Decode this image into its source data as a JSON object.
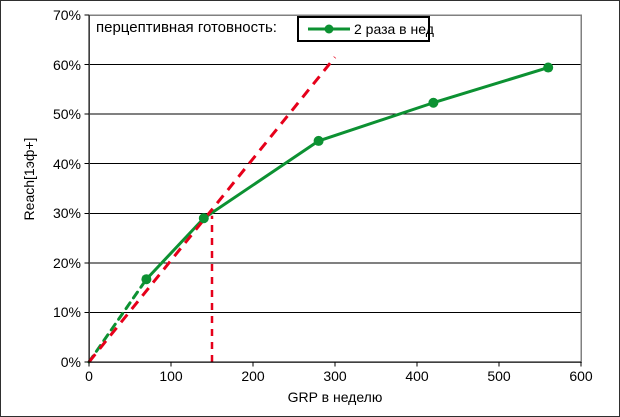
{
  "window": {
    "background": "#ffffff",
    "outer_border_color": "#2f2f2f"
  },
  "chart_data": {
    "type": "line",
    "title": "",
    "xlabel": "GRP в неделю",
    "ylabel": "Reach[1эф+]",
    "legend_header": "перцептивная готовность:",
    "legend_position": "top-inside",
    "grid": "horizontal",
    "xlim": [
      0,
      600
    ],
    "ylim": [
      0,
      70
    ],
    "x_ticks": [
      0,
      100,
      200,
      300,
      400,
      500,
      600
    ],
    "y_tick_labels": [
      "0%",
      "10%",
      "20%",
      "30%",
      "40%",
      "50%",
      "60%",
      "70%"
    ],
    "y_tick_values": [
      0,
      10,
      20,
      30,
      40,
      50,
      60,
      70
    ],
    "series": [
      {
        "name": "2 раза в нед",
        "kind": "reach-curve",
        "color": "#0c9132",
        "marker": "circle",
        "marker_radius": 5,
        "line_width": 3,
        "first_segment": "dashed",
        "dash": [
          7,
          6
        ],
        "points": [
          [
            0,
            0
          ],
          [
            70,
            16.7
          ],
          [
            140,
            29
          ],
          [
            280,
            44.6
          ],
          [
            420,
            52.3
          ],
          [
            560,
            59.4
          ]
        ]
      },
      {
        "name": "linear-reference",
        "kind": "straight-dashed",
        "color": "#e6001a",
        "line_width": 3,
        "dash": [
          10,
          7
        ],
        "points": [
          [
            0,
            0
          ],
          [
            300,
            61.5
          ]
        ]
      },
      {
        "name": "threshold-marker",
        "kind": "vertical-dashed",
        "color": "#e6001a",
        "line_width": 2.5,
        "dash": [
          7,
          6
        ],
        "points": [
          [
            150,
            0
          ],
          [
            150,
            29.5
          ]
        ]
      }
    ],
    "colors": {
      "gridline": "#000000",
      "plot_border": "#808080",
      "axis": "#000000",
      "background": "#ffffff"
    }
  }
}
